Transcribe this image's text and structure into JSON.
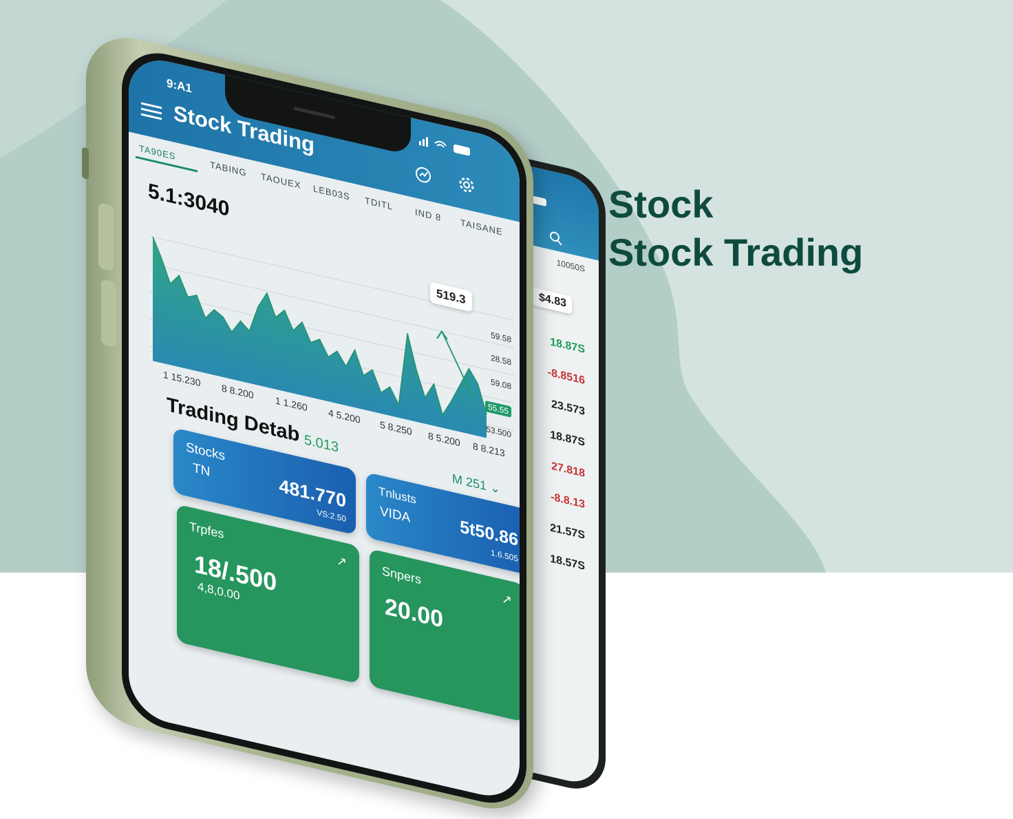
{
  "status_bar": {
    "time": "9:A1"
  },
  "header": {
    "title": "Stock Trading"
  },
  "tabs": [
    "TA90ES",
    "TABING",
    "TAOUEX",
    "LEB03S",
    "TDITL",
    "IND 8",
    "TAISANE"
  ],
  "price": "5.1:3040",
  "chart": {
    "values": [
      95,
      80,
      62,
      70,
      55,
      58,
      42,
      50,
      46,
      36,
      46,
      40,
      60,
      72,
      55,
      62,
      48,
      56,
      42,
      46,
      34,
      40,
      30,
      44,
      26,
      32,
      16,
      22,
      10,
      66,
      40,
      20,
      32,
      10,
      22,
      36,
      50,
      40,
      18
    ],
    "tooltip": "519.3",
    "y_labels": [
      "59.58",
      "28.58",
      "59.08",
      "55.55",
      "53.500"
    ],
    "x_labels": [
      "1 15.230",
      "8 8.200",
      "1 1.260",
      "4 5.200",
      "5 8.250",
      "8 5.200",
      "8 8.213"
    ]
  },
  "details": {
    "title": "Trading Detab",
    "value": "5.013",
    "dropdown": "M 251"
  },
  "cards": [
    {
      "label": "Stocks",
      "code": "TN",
      "value": "481.770",
      "sub": "VS:2.50"
    },
    {
      "label": "Tnlusts",
      "code": "VIDA",
      "value": "5t50.86",
      "sub": "1.6.505"
    },
    {
      "label": "Trpfes",
      "value": "18/.500",
      "sub": "4,8,0.00"
    },
    {
      "label": "Snpers",
      "value": "20.00"
    }
  ],
  "second_phone": {
    "header_label": "10050S",
    "badge": "$4.83",
    "list": [
      "18.87S",
      "-8.8516",
      "23.573",
      "18.87S",
      "27.818",
      "-8.8.13",
      "21.57S",
      "18.57S"
    ]
  },
  "hero": {
    "line1": "Stock",
    "line2": "Stock Trading"
  }
}
